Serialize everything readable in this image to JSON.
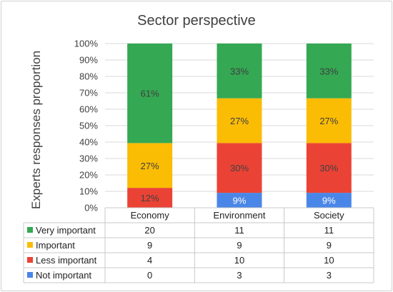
{
  "chart_data": {
    "type": "bar",
    "stacked": "percent",
    "title": "Sector perspective",
    "ylabel": "Experts responses proportion",
    "xlabel": "",
    "ylim": [
      0,
      100
    ],
    "y_ticks": [
      "0%",
      "10%",
      "20%",
      "30%",
      "40%",
      "50%",
      "60%",
      "70%",
      "80%",
      "90%",
      "100%"
    ],
    "categories": [
      "Economy",
      "Environment",
      "Society"
    ],
    "legend_placement": "data table below chart",
    "gridlines": true,
    "series": [
      {
        "name": "Not important",
        "color": "#4a86e8",
        "values": [
          0,
          3,
          3
        ],
        "labels": [
          "",
          "9%",
          "9%"
        ],
        "label_color": "#ffffff"
      },
      {
        "name": "Less important",
        "color": "#ea4335",
        "values": [
          4,
          10,
          10
        ],
        "labels": [
          "12%",
          "30%",
          "30%"
        ],
        "label_color": "#404040"
      },
      {
        "name": "Important",
        "color": "#fbbc04",
        "values": [
          9,
          9,
          9
        ],
        "labels": [
          "27%",
          "27%",
          "27%"
        ],
        "label_color": "#404040"
      },
      {
        "name": "Very important",
        "color": "#34a853",
        "values": [
          20,
          11,
          11
        ],
        "labels": [
          "61%",
          "33%",
          "33%"
        ],
        "label_color": "#404040"
      }
    ],
    "table_rows": [
      {
        "series": "Very important",
        "values": [
          "20",
          "11",
          "11"
        ]
      },
      {
        "series": "Important",
        "values": [
          "9",
          "9",
          "9"
        ]
      },
      {
        "series": "Less important",
        "values": [
          "4",
          "10",
          "10"
        ]
      },
      {
        "series": "Not important",
        "values": [
          "0",
          "3",
          "3"
        ]
      }
    ]
  }
}
